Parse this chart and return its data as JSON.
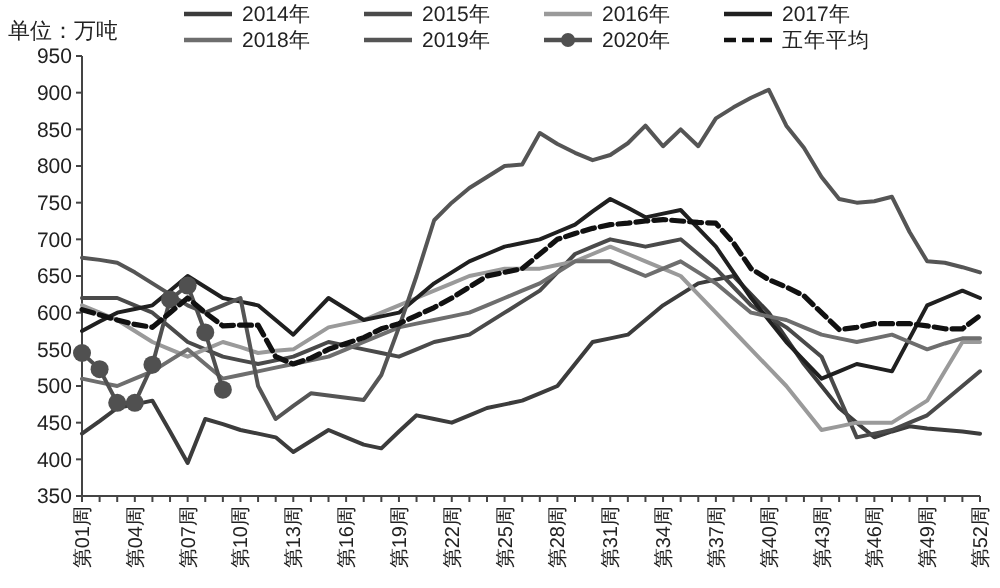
{
  "chart_data": {
    "type": "line",
    "ylabel": "单位：万吨",
    "legend": "top",
    "grid": false,
    "marker": "none",
    "line_style": "solid",
    "categories": [
      "第01周",
      null,
      null,
      "第04周",
      null,
      null,
      "第07周",
      null,
      null,
      "第10周",
      null,
      null,
      "第13周",
      null,
      null,
      "第16周",
      null,
      null,
      "第19周",
      null,
      null,
      "第22周",
      null,
      null,
      "第25周",
      null,
      null,
      "第28周",
      null,
      null,
      "第31周",
      null,
      null,
      "第34周",
      null,
      null,
      "第37周",
      null,
      null,
      "第40周",
      null,
      null,
      "第43周",
      null,
      null,
      "第46周",
      null,
      null,
      "第49周",
      null,
      null,
      "第52周"
    ],
    "ylim": [
      350,
      950
    ],
    "yticks": [
      350,
      400,
      450,
      500,
      550,
      600,
      650,
      700,
      750,
      800,
      850,
      900,
      950
    ],
    "series": [
      {
        "name": "2014年",
        "color": "#3c3c3c",
        "values": [
          435,
          452,
          470,
          475,
          480,
          438,
          395,
          455,
          448,
          440,
          435,
          430,
          410,
          425,
          440,
          430,
          420,
          415,
          438,
          460,
          455,
          450,
          460,
          470,
          475,
          480,
          490,
          500,
          530,
          560,
          565,
          570,
          590,
          610,
          625,
          640,
          645,
          650,
          625,
          600,
          565,
          530,
          500,
          470,
          450,
          430,
          438,
          445,
          442,
          440,
          438,
          435
        ]
      },
      {
        "name": "2015年",
        "color": "#4a4a4a",
        "values": [
          620,
          620,
          620,
          610,
          600,
          580,
          560,
          550,
          540,
          535,
          530,
          535,
          540,
          550,
          560,
          555,
          550,
          545,
          540,
          550,
          560,
          565,
          570,
          585,
          600,
          615,
          630,
          655,
          680,
          690,
          700,
          695,
          690,
          695,
          700,
          680,
          660,
          635,
          610,
          595,
          580,
          560,
          540,
          485,
          430,
          435,
          440,
          450,
          460,
          480,
          500,
          520
        ]
      },
      {
        "name": "2016年",
        "color": "#9a9a9a",
        "values": [
          610,
          600,
          590,
          575,
          560,
          550,
          540,
          550,
          560,
          553,
          545,
          548,
          550,
          565,
          580,
          585,
          590,
          600,
          610,
          620,
          630,
          640,
          650,
          655,
          660,
          660,
          660,
          665,
          670,
          680,
          690,
          680,
          670,
          660,
          650,
          625,
          600,
          575,
          550,
          525,
          500,
          470,
          440,
          445,
          450,
          450,
          450,
          465,
          480,
          520,
          560,
          560
        ]
      },
      {
        "name": "2017年",
        "color": "#202020",
        "values": [
          575,
          588,
          600,
          605,
          610,
          630,
          650,
          635,
          620,
          615,
          610,
          590,
          570,
          595,
          620,
          605,
          590,
          595,
          600,
          620,
          640,
          655,
          670,
          680,
          690,
          695,
          700,
          710,
          720,
          738,
          755,
          743,
          730,
          735,
          740,
          715,
          690,
          655,
          620,
          590,
          560,
          535,
          510,
          520,
          530,
          525,
          520,
          565,
          610,
          620,
          630,
          620
        ]
      },
      {
        "name": "2018年",
        "color": "#6e6e6e",
        "values": [
          510,
          505,
          500,
          510,
          520,
          535,
          550,
          530,
          510,
          515,
          520,
          525,
          530,
          535,
          540,
          550,
          560,
          570,
          580,
          585,
          590,
          595,
          600,
          610,
          620,
          630,
          640,
          655,
          670,
          670,
          670,
          660,
          650,
          660,
          670,
          655,
          640,
          620,
          600,
          595,
          590,
          580,
          570,
          565,
          560,
          565,
          570,
          560,
          550,
          558,
          565,
          565
        ]
      },
      {
        "name": "2019年",
        "color": "#555555",
        "values": [
          675,
          672,
          668,
          655,
          640,
          625,
          610,
          600,
          610,
          620,
          500,
          455,
          473,
          490,
          487,
          484,
          481,
          515,
          580,
          650,
          726,
          750,
          770,
          785,
          800,
          802,
          845,
          830,
          818,
          808,
          815,
          831,
          855,
          827,
          850,
          827,
          865,
          880,
          893,
          904,
          855,
          825,
          785,
          755,
          750,
          752,
          758,
          710,
          670,
          668,
          662,
          655
        ]
      },
      {
        "name": "2020年",
        "color": "#505050",
        "marker": "circle",
        "values": [
          545,
          523,
          477,
          477,
          529,
          618,
          637,
          573,
          495,
          null,
          null,
          null,
          null,
          null,
          null,
          null,
          null,
          null,
          null,
          null,
          null,
          null,
          null,
          null,
          null,
          null,
          null,
          null,
          null,
          null,
          null,
          null,
          null,
          null,
          null,
          null,
          null,
          null,
          null,
          null,
          null,
          null,
          null,
          null,
          null,
          null,
          null,
          null,
          null,
          null,
          null,
          null
        ]
      },
      {
        "name": "五年平均",
        "color": "#111111",
        "line_style": "dashed",
        "values": [
          604,
          597,
          590,
          584,
          580,
          600,
          620,
          600,
          582,
          583,
          583,
          540,
          530,
          538,
          550,
          558,
          566,
          578,
          585,
          596,
          607,
          620,
          635,
          650,
          655,
          660,
          680,
          700,
          708,
          715,
          720,
          722,
          725,
          727,
          725,
          723,
          722,
          695,
          660,
          645,
          635,
          623,
          600,
          577,
          580,
          585,
          585,
          585,
          582,
          578,
          578,
          596
        ]
      }
    ]
  }
}
